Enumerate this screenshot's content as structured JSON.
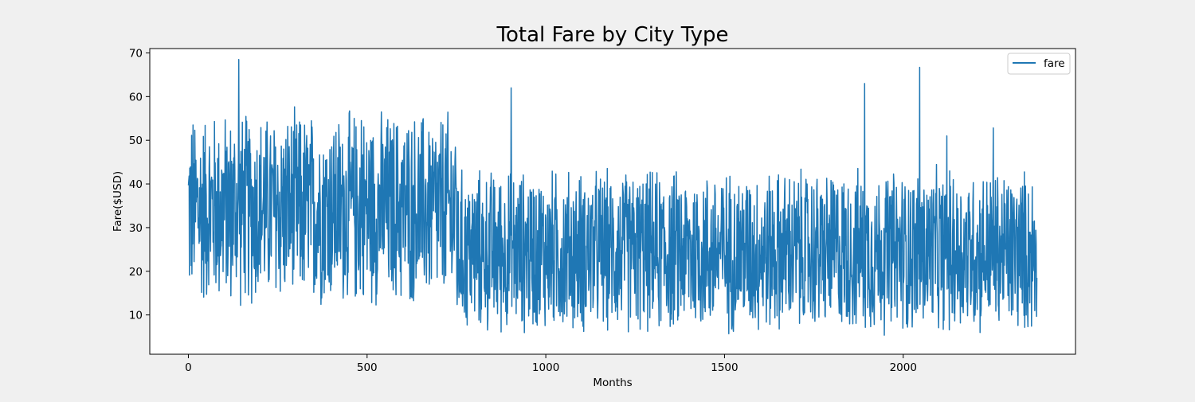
{
  "chart_data": {
    "type": "line",
    "title": "Total Fare by City Type",
    "xlabel": "Months",
    "ylabel": "Fare($USD)",
    "xlim": [
      -108,
      2482
    ],
    "ylim": [
      1,
      71
    ],
    "xticks": [
      0,
      500,
      1000,
      1500,
      2000
    ],
    "yticks": [
      10,
      20,
      30,
      40,
      50,
      60,
      70
    ],
    "grid": false,
    "legend_position": "top-right",
    "n_points": 2375,
    "series": [
      {
        "name": "fare",
        "color": "#1f77b4",
        "segments": [
          {
            "x_start": 0,
            "x_end": 750,
            "min": 10,
            "max": 58.5
          },
          {
            "x_start": 750,
            "x_end": 2374,
            "min": 4,
            "max": 45
          }
        ],
        "peaks": [
          {
            "x": 141,
            "y": 68.5
          },
          {
            "x": 903,
            "y": 62
          },
          {
            "x": 1892,
            "y": 63
          },
          {
            "x": 2046,
            "y": 66.7
          },
          {
            "x": 2122,
            "y": 51
          },
          {
            "x": 2252,
            "y": 52.8
          },
          {
            "x": 484,
            "y": 54.5
          }
        ],
        "last_value": 18.5
      }
    ]
  }
}
